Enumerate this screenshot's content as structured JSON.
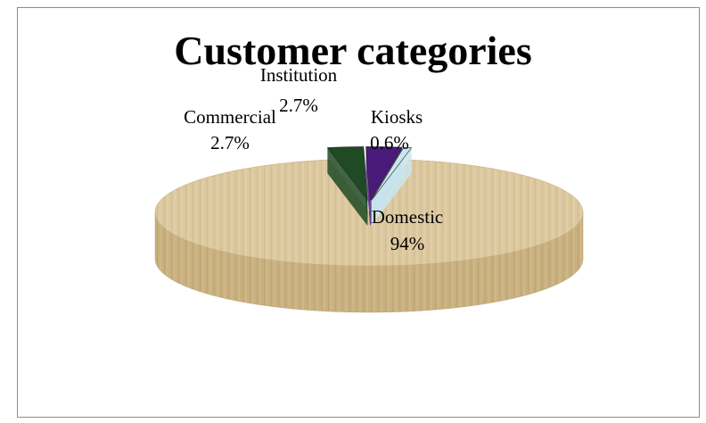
{
  "chart_data": {
    "type": "pie",
    "title": "Customer categories",
    "three_d": true,
    "slices": [
      {
        "name": "Domestic",
        "value": 94,
        "label": "94%",
        "color": "#d9c49a"
      },
      {
        "name": "Commercial",
        "value": 2.7,
        "label": "2.7%",
        "color": "#1f4a23"
      },
      {
        "name": "Institution",
        "value": 2.7,
        "label": "2.7%",
        "color": "#4a1a7a"
      },
      {
        "name": "Kiosks",
        "value": 0.6,
        "label": "0.6%",
        "color": "#c9e6ee"
      }
    ],
    "legend": "none"
  }
}
